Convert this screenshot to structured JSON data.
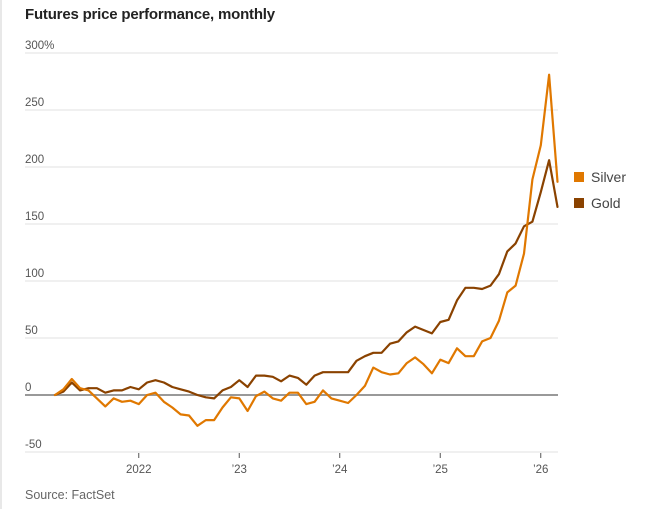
{
  "chart_data": {
    "type": "line",
    "title": "Futures price performance, monthly",
    "source": "Source: FactSet",
    "xlabel": "",
    "ylabel": "",
    "ylim": [
      -50,
      300
    ],
    "y_ticks": [
      {
        "value": 300,
        "label": "300%"
      },
      {
        "value": 250,
        "label": "250"
      },
      {
        "value": 200,
        "label": "200"
      },
      {
        "value": 150,
        "label": "150"
      },
      {
        "value": 100,
        "label": "100"
      },
      {
        "value": 50,
        "label": "50"
      },
      {
        "value": 0,
        "label": "0"
      },
      {
        "value": -50,
        "label": "-50"
      }
    ],
    "x_start": "2021-03",
    "x_ticks": [
      {
        "month_index": 10,
        "label": "2022"
      },
      {
        "month_index": 22,
        "label": "’23"
      },
      {
        "month_index": 34,
        "label": "’24"
      },
      {
        "month_index": 46,
        "label": "’25"
      },
      {
        "month_index": 58,
        "label": "’26"
      }
    ],
    "grid": true,
    "legend_position": "right",
    "series": [
      {
        "name": "Silver",
        "color": "#E07800",
        "values": [
          0,
          5,
          14,
          6,
          4,
          -3,
          -10,
          -3,
          -6,
          -5,
          -8,
          0,
          2,
          -6,
          -11,
          -17,
          -18,
          -27,
          -22,
          -22,
          -11,
          -2,
          -3,
          -14,
          -1,
          3,
          -3,
          -5,
          2,
          2,
          -8,
          -6,
          4,
          -3,
          -5,
          -7,
          0,
          8,
          24,
          20,
          18,
          19,
          28,
          33,
          27,
          19,
          31,
          28,
          41,
          34,
          34,
          47,
          50,
          65,
          90,
          96,
          124,
          189,
          219,
          281,
          187
        ]
      },
      {
        "name": "Gold",
        "color": "#8A4200",
        "values": [
          0,
          3,
          11,
          4,
          6,
          6,
          2,
          4,
          4,
          7,
          5,
          11,
          13,
          11,
          7,
          5,
          3,
          0,
          -2,
          -3,
          4,
          7,
          13,
          7,
          17,
          17,
          16,
          12,
          17,
          15,
          9,
          17,
          20,
          20,
          20,
          20,
          30,
          34,
          37,
          37,
          45,
          47,
          55,
          60,
          57,
          54,
          64,
          66,
          83,
          94,
          94,
          93,
          96,
          106,
          126,
          133,
          148,
          152,
          178,
          206,
          165
        ]
      }
    ]
  }
}
